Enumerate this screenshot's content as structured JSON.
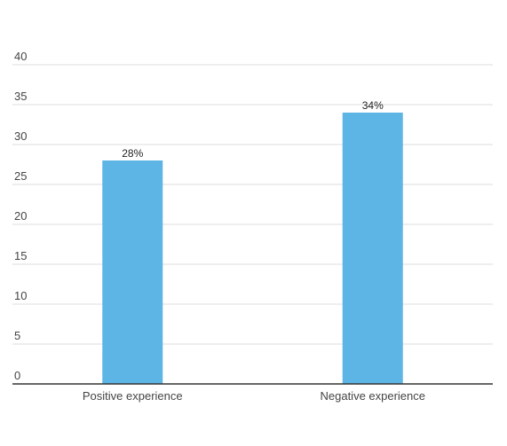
{
  "chart_data": {
    "type": "bar",
    "categories": [
      "Positive experience",
      "Negative experience"
    ],
    "values": [
      28,
      34
    ],
    "data_labels": [
      "28%",
      "34%"
    ],
    "title": "",
    "xlabel": "",
    "ylabel": "",
    "ylim": [
      0,
      40
    ],
    "yticks": [
      "0",
      "5",
      "10",
      "15",
      "20",
      "25",
      "30",
      "35",
      "40"
    ],
    "grid": true,
    "legend": "none",
    "bar_color": "#5DB5E5",
    "grid_color": "#DDDDDD",
    "axis_color": "#333333",
    "text_color": "#444444"
  }
}
